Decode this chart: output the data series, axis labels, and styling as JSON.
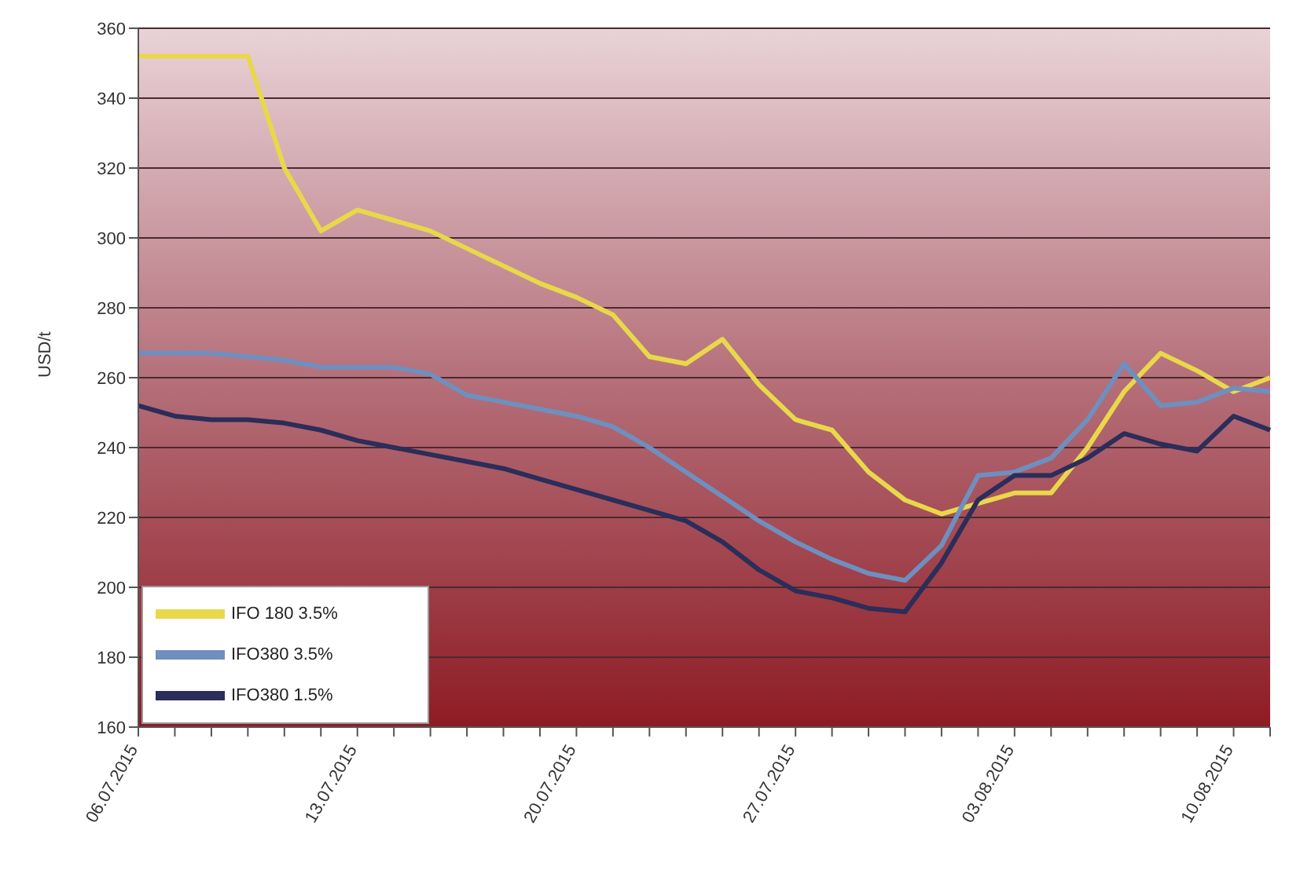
{
  "chart_data": {
    "type": "line",
    "ylabel": "USD/t",
    "categories": [
      "06.07.2015",
      null,
      null,
      null,
      null,
      null,
      "13.07.2015",
      null,
      null,
      null,
      null,
      null,
      "20.07.2015",
      null,
      null,
      null,
      null,
      null,
      "27.07.2015",
      null,
      null,
      null,
      null,
      null,
      "03.08.2015",
      null,
      null,
      null,
      null,
      null,
      "10.08.2015",
      null
    ],
    "series": [
      {
        "name": "IFO 180 3.5%",
        "color": "#e8d84a",
        "values": [
          352,
          352,
          352,
          352,
          320,
          302,
          308,
          305,
          302,
          297,
          292,
          287,
          283,
          278,
          266,
          264,
          271,
          258,
          248,
          245,
          233,
          225,
          221,
          224,
          227,
          227,
          240,
          256,
          267,
          262,
          256,
          260
        ]
      },
      {
        "name": "IFO380 3.5%",
        "color": "#6f8fbf",
        "values": [
          267,
          267,
          267,
          266,
          265,
          263,
          263,
          263,
          261,
          255,
          253,
          251,
          249,
          246,
          240,
          233,
          226,
          219,
          213,
          208,
          204,
          202,
          212,
          232,
          233,
          237,
          248,
          264,
          252,
          253,
          257,
          256
        ]
      },
      {
        "name": "IFO380 1.5%",
        "color": "#2b2d5a",
        "values": [
          252,
          249,
          248,
          248,
          247,
          245,
          242,
          240,
          238,
          236,
          234,
          231,
          228,
          225,
          222,
          219,
          213,
          205,
          199,
          197,
          194,
          193,
          207,
          225,
          232,
          232,
          237,
          244,
          241,
          239,
          249,
          245
        ]
      }
    ],
    "ylim": [
      160,
      360
    ],
    "yticks": [
      160,
      180,
      200,
      220,
      240,
      260,
      280,
      300,
      320,
      340,
      360
    ],
    "grid": "y",
    "legend": "bottom left",
    "marker": "none",
    "line_style": "solid"
  }
}
